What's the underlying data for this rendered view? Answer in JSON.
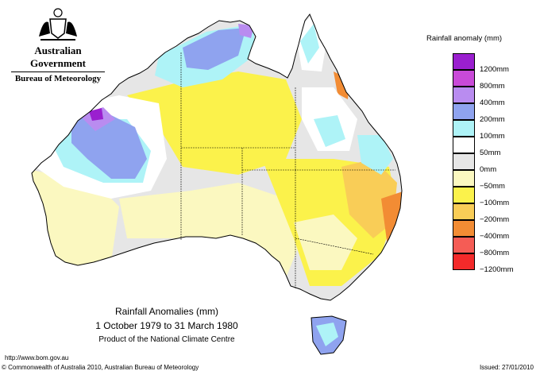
{
  "header": {
    "gov_name": "Australian Government",
    "bureau": "Bureau of Meteorology"
  },
  "legend": {
    "title": "Rainfall anomaly (mm)",
    "items": [
      {
        "label": "1200mm",
        "color": "#9a1fcf"
      },
      {
        "label": "800mm",
        "color": "#c94ad8"
      },
      {
        "label": "400mm",
        "color": "#b98cf0"
      },
      {
        "label": "200mm",
        "color": "#8fa3ef"
      },
      {
        "label": "100mm",
        "color": "#aef3f7"
      },
      {
        "label": "50mm",
        "color": "#ffffff"
      },
      {
        "label": "0mm",
        "color": "#e6e6e6"
      },
      {
        "label": "−50mm",
        "color": "#fbf8c0"
      },
      {
        "label": "−100mm",
        "color": "#fbf24b"
      },
      {
        "label": "−200mm",
        "color": "#f9cd57"
      },
      {
        "label": "−400mm",
        "color": "#f28c34"
      },
      {
        "label": "−800mm",
        "color": "#f55c55"
      },
      {
        "label": "−1200mm",
        "color": "#f32a2a"
      }
    ]
  },
  "map": {
    "title_line1": "Rainfall Anomalies (mm)",
    "title_line2": "1 October 1979 to 31 March 1980",
    "title_line3": "Product of the National Climate Centre"
  },
  "footer": {
    "url": "http://www.bom.gov.au",
    "copyright": "© Commonwealth of Australia 2010, Australian Bureau of Meteorology",
    "issued": "Issued: 27/01/2010"
  }
}
